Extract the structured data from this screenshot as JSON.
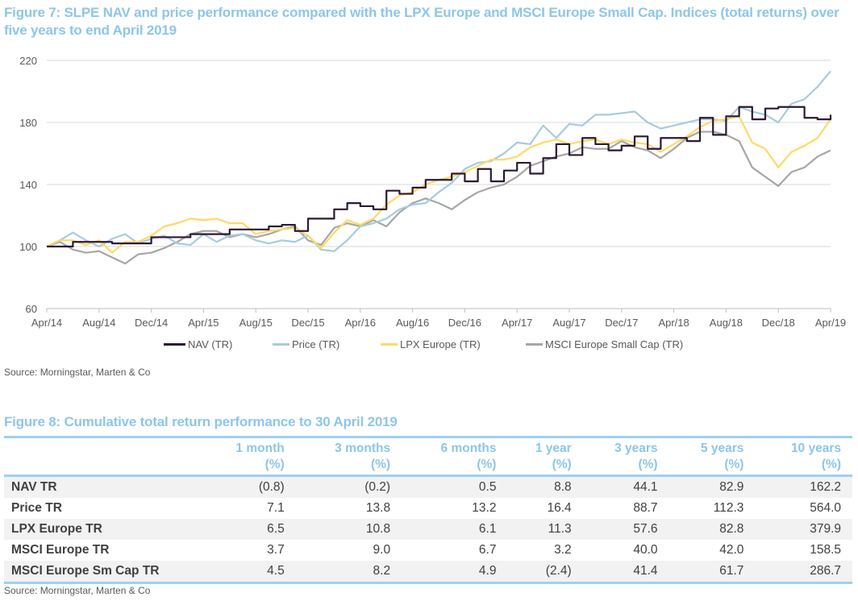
{
  "figure7": {
    "title": "Figure 7: SLPE NAV and price performance compared with the LPX Europe and MSCI Europe Small Cap. Indices (total returns) over five years to end April 2019",
    "source": "Source: Morningstar, Marten & Co"
  },
  "chart_data": {
    "type": "line",
    "title": "",
    "xlabel": "",
    "ylabel": "",
    "ylim": [
      60,
      220
    ],
    "yticks": [
      "60",
      "100",
      "140",
      "180",
      "220"
    ],
    "xticks": [
      "Apr/14",
      "Aug/14",
      "Dec/14",
      "Apr/15",
      "Aug/15",
      "Dec/15",
      "Apr/16",
      "Aug/16",
      "Dec/16",
      "Apr/17",
      "Aug/17",
      "Dec/17",
      "Apr/18",
      "Aug/18",
      "Dec/18",
      "Apr/19"
    ],
    "xlim": [
      "2014-04",
      "2019-04"
    ],
    "grid": "horizontal",
    "legend_position": "bottom",
    "x": [
      "2014-04",
      "2014-05",
      "2014-06",
      "2014-07",
      "2014-08",
      "2014-09",
      "2014-10",
      "2014-11",
      "2014-12",
      "2015-01",
      "2015-02",
      "2015-03",
      "2015-04",
      "2015-05",
      "2015-06",
      "2015-07",
      "2015-08",
      "2015-09",
      "2015-10",
      "2015-11",
      "2015-12",
      "2016-01",
      "2016-02",
      "2016-03",
      "2016-04",
      "2016-05",
      "2016-06",
      "2016-07",
      "2016-08",
      "2016-09",
      "2016-10",
      "2016-11",
      "2016-12",
      "2017-01",
      "2017-02",
      "2017-03",
      "2017-04",
      "2017-05",
      "2017-06",
      "2017-07",
      "2017-08",
      "2017-09",
      "2017-10",
      "2017-11",
      "2017-12",
      "2018-01",
      "2018-02",
      "2018-03",
      "2018-04",
      "2018-05",
      "2018-06",
      "2018-07",
      "2018-08",
      "2018-09",
      "2018-10",
      "2018-11",
      "2018-12",
      "2019-01",
      "2019-02",
      "2019-03",
      "2019-04"
    ],
    "series": [
      {
        "name": "NAV (TR)",
        "color": "#2b1a33",
        "step": true,
        "values": [
          100,
          100,
          103,
          103,
          103,
          102,
          102,
          102,
          106,
          106,
          106,
          108,
          108,
          108,
          111,
          111,
          111,
          113,
          114,
          110,
          118,
          118,
          124,
          128,
          126,
          124,
          136,
          134,
          138,
          143,
          143,
          147,
          142,
          150,
          142,
          149,
          154,
          147,
          157,
          166,
          159,
          170,
          166,
          162,
          165,
          171,
          163,
          170,
          170,
          168,
          183,
          172,
          184,
          190,
          182,
          189,
          190,
          190,
          183,
          182,
          185
        ]
      },
      {
        "name": "Price (TR)",
        "color": "#a6cbe0",
        "values": [
          100,
          104,
          109,
          104,
          100,
          105,
          108,
          102,
          105,
          107,
          102,
          101,
          108,
          103,
          107,
          108,
          104,
          102,
          104,
          103,
          107,
          98,
          97,
          104,
          113,
          115,
          118,
          124,
          127,
          128,
          135,
          141,
          150,
          154,
          155,
          160,
          167,
          166,
          178,
          170,
          179,
          178,
          185,
          185,
          186,
          187,
          180,
          176,
          178,
          180,
          182,
          182,
          181,
          190,
          187,
          185,
          180,
          192,
          195,
          203,
          213
        ]
      },
      {
        "name": "LPX Europe (TR)",
        "color": "#ffd966",
        "values": [
          100,
          104,
          104,
          101,
          104,
          96,
          103,
          103,
          107,
          113,
          115,
          118,
          117,
          118,
          115,
          115,
          108,
          110,
          111,
          112,
          107,
          99,
          109,
          117,
          114,
          118,
          127,
          133,
          135,
          140,
          143,
          145,
          148,
          152,
          156,
          156,
          158,
          164,
          167,
          169,
          166,
          168,
          169,
          166,
          169,
          167,
          166,
          161,
          166,
          171,
          177,
          181,
          182,
          184,
          167,
          163,
          151,
          161,
          165,
          170,
          182
        ]
      },
      {
        "name": "MSCI Europe Small Cap (TR)",
        "color": "#a6a6a6",
        "values": [
          100,
          103,
          98,
          96,
          97,
          93,
          89,
          95,
          96,
          99,
          103,
          108,
          110,
          110,
          106,
          108,
          106,
          108,
          111,
          113,
          104,
          101,
          112,
          115,
          113,
          117,
          113,
          122,
          128,
          131,
          128,
          124,
          130,
          135,
          138,
          140,
          145,
          152,
          155,
          158,
          160,
          164,
          163,
          163,
          168,
          164,
          162,
          157,
          163,
          170,
          174,
          174,
          172,
          168,
          151,
          145,
          139,
          148,
          151,
          158,
          162
        ]
      }
    ]
  },
  "figure8": {
    "title": "Figure 8: Cumulative total return performance to 30 April 2019",
    "columns": [
      {
        "label": "1 month",
        "unit": "(%)"
      },
      {
        "label": "3 months",
        "unit": "(%)"
      },
      {
        "label": "6 months",
        "unit": "(%)"
      },
      {
        "label": "1 year",
        "unit": "(%)"
      },
      {
        "label": "3 years",
        "unit": "(%)"
      },
      {
        "label": "5 years",
        "unit": "(%)"
      },
      {
        "label": "10 years",
        "unit": "(%)"
      }
    ],
    "rows": [
      {
        "label": "NAV TR",
        "values": [
          "(0.8)",
          "(0.2)",
          "0.5",
          "8.8",
          "44.1",
          "82.9",
          "162.2"
        ]
      },
      {
        "label": "Price TR",
        "values": [
          "7.1",
          "13.8",
          "13.2",
          "16.4",
          "88.7",
          "112.3",
          "564.0"
        ]
      },
      {
        "label": "LPX Europe TR",
        "values": [
          "6.5",
          "10.8",
          "6.1",
          "11.3",
          "57.6",
          "82.8",
          "379.9"
        ]
      },
      {
        "label": "MSCI Europe TR",
        "values": [
          "3.7",
          "9.0",
          "6.7",
          "3.2",
          "40.0",
          "42.0",
          "158.5"
        ]
      },
      {
        "label": "MSCI Europe Sm Cap TR",
        "values": [
          "4.5",
          "8.2",
          "4.9",
          "(2.4)",
          "41.4",
          "61.7",
          "286.7"
        ]
      }
    ],
    "source": "Source: Morningstar, Marten & Co"
  }
}
